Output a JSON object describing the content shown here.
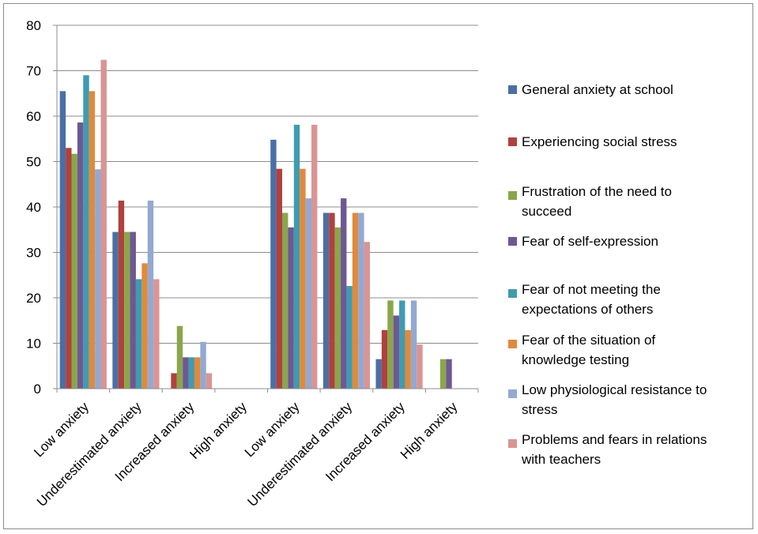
{
  "chart_data": {
    "type": "bar",
    "categories": [
      "Low anxiety",
      "Underestimated anxiety",
      "Increased anxiety",
      "High anxiety",
      "Low anxiety",
      "Underestimated anxiety",
      "Increased anxiety",
      "High anxiety"
    ],
    "ylim": [
      0,
      80
    ],
    "yticks": [
      0,
      10,
      20,
      30,
      40,
      50,
      60,
      70,
      80
    ],
    "grid": true,
    "legend_position": "right",
    "series": [
      {
        "name": "General anxiety at school",
        "legend_lines": [
          "General anxiety at school"
        ],
        "color": "#4a6fa5",
        "values": [
          65.5,
          34.5,
          0,
          0,
          54.8,
          38.7,
          6.5,
          0
        ]
      },
      {
        "name": "Experiencing social stress",
        "legend_lines": [
          "Experiencing social stress"
        ],
        "color": "#b0413e",
        "values": [
          53,
          41.4,
          3.4,
          0,
          48.4,
          38.7,
          12.9,
          0
        ]
      },
      {
        "name": "Frustration of the need to succeed",
        "legend_lines": [
          "Frustration of the need to",
          "succeed"
        ],
        "color": "#8aa64a",
        "values": [
          51.7,
          34.5,
          13.8,
          0,
          38.7,
          35.5,
          19.4,
          6.5
        ]
      },
      {
        "name": "Fear of self-expression",
        "legend_lines": [
          "Fear of self-expression"
        ],
        "color": "#6e5894",
        "values": [
          58.6,
          34.5,
          6.9,
          0,
          35.5,
          41.9,
          16.1,
          6.5
        ]
      },
      {
        "name": "Fear of not meeting the expectations of others",
        "legend_lines": [
          "Fear of not meeting the",
          "expectations of others"
        ],
        "color": "#3f9bb0",
        "values": [
          69,
          24.1,
          6.9,
          0,
          58.1,
          22.6,
          19.4,
          0
        ]
      },
      {
        "name": "Fear of the situation of knowledge testing",
        "legend_lines": [
          "Fear of the situation of",
          "knowledge testing"
        ],
        "color": "#e08a3c",
        "values": [
          65.5,
          27.6,
          6.9,
          0,
          48.4,
          38.7,
          12.9,
          0
        ]
      },
      {
        "name": "Low physiological resistance to stress",
        "legend_lines": [
          "Low physiological resistance to",
          "stress"
        ],
        "color": "#93a9d1",
        "values": [
          48.3,
          41.4,
          10.3,
          0,
          41.9,
          38.7,
          19.4,
          0
        ]
      },
      {
        "name": "Problems and fears in relations with teachers",
        "legend_lines": [
          "Problems and fears in relations",
          "with teachers"
        ],
        "color": "#d99594",
        "values": [
          72.4,
          24.1,
          3.4,
          0,
          58.1,
          32.3,
          9.7,
          0
        ]
      }
    ]
  }
}
